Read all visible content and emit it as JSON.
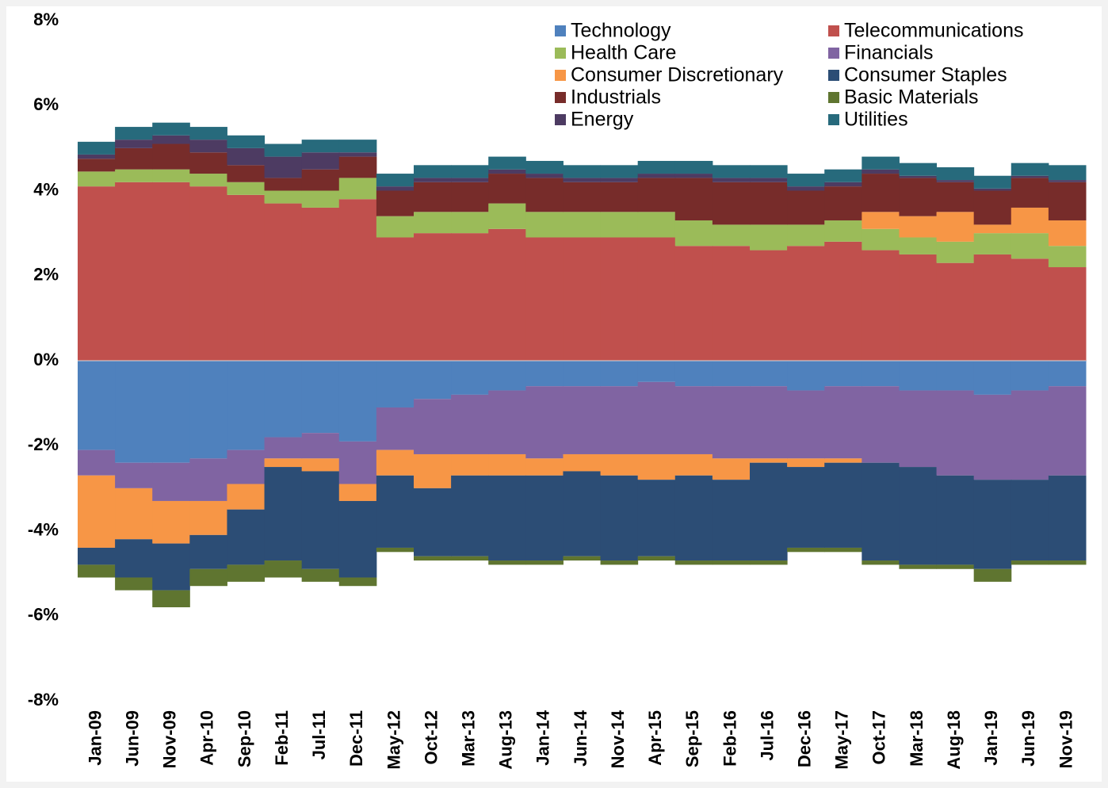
{
  "chart_data": {
    "type": "stacked-area",
    "categories": [
      "Jan-09",
      "Jun-09",
      "Nov-09",
      "Apr-10",
      "Sep-10",
      "Feb-11",
      "Jul-11",
      "Dec-11",
      "May-12",
      "Oct-12",
      "Mar-13",
      "Aug-13",
      "Jan-14",
      "Jun-14",
      "Nov-14",
      "Apr-15",
      "Sep-15",
      "Feb-16",
      "Jul-16",
      "Dec-16",
      "May-17",
      "Oct-17",
      "Mar-18",
      "Aug-18",
      "Jan-19",
      "Jun-19",
      "Nov-19"
    ],
    "series": [
      {
        "name": "Technology",
        "color": "#4f81bd",
        "values": [
          -2.1,
          -2.4,
          -2.4,
          -2.3,
          -2.1,
          -1.8,
          -1.7,
          -1.9,
          -1.1,
          -0.9,
          -0.8,
          -0.7,
          -0.6,
          -0.6,
          -0.6,
          -0.5,
          -0.6,
          -0.6,
          -0.6,
          -0.7,
          -0.6,
          -0.6,
          -0.7,
          -0.7,
          -0.8,
          -0.7,
          -0.6
        ]
      },
      {
        "name": "Telecommunications",
        "color": "#c0504d",
        "values": [
          4.1,
          4.2,
          4.2,
          4.1,
          3.9,
          3.7,
          3.6,
          3.8,
          2.9,
          3.0,
          3.0,
          3.1,
          2.9,
          2.9,
          2.9,
          2.9,
          2.7,
          2.7,
          2.6,
          2.7,
          2.8,
          2.6,
          2.5,
          2.3,
          2.5,
          2.4,
          2.2
        ]
      },
      {
        "name": "Health Care",
        "color": "#9bbb59",
        "values": [
          0.35,
          0.3,
          0.3,
          0.3,
          0.3,
          0.3,
          0.4,
          0.5,
          0.5,
          0.5,
          0.5,
          0.6,
          0.6,
          0.6,
          0.6,
          0.6,
          0.6,
          0.5,
          0.6,
          0.5,
          0.5,
          0.5,
          0.4,
          0.5,
          0.5,
          0.6,
          0.5
        ]
      },
      {
        "name": "Financials",
        "color": "#8064a2",
        "values": [
          -0.6,
          -0.6,
          -0.9,
          -1.0,
          -0.8,
          -0.5,
          -0.6,
          -1.0,
          -1.0,
          -1.3,
          -1.4,
          -1.5,
          -1.7,
          -1.6,
          -1.6,
          -1.7,
          -1.6,
          -1.7,
          -1.7,
          -1.6,
          -1.7,
          -1.8,
          -1.8,
          -2.0,
          -2.0,
          -2.1,
          -2.1
        ]
      },
      {
        "name": "Consumer Discretionary",
        "color": "#f79646",
        "values": [
          -1.7,
          -1.2,
          -1.0,
          -0.8,
          -0.6,
          -0.2,
          -0.3,
          -0.4,
          -0.6,
          -0.8,
          -0.5,
          -0.5,
          -0.4,
          -0.4,
          -0.5,
          -0.6,
          -0.5,
          -0.5,
          -0.1,
          -0.2,
          -0.1,
          0.4,
          0.5,
          0.7,
          0.2,
          0.6,
          0.6
        ]
      },
      {
        "name": "Consumer Staples",
        "color": "#2c4d75",
        "values": [
          -0.4,
          -0.9,
          -1.1,
          -0.8,
          -1.3,
          -2.2,
          -2.3,
          -1.8,
          -1.7,
          -1.6,
          -1.9,
          -2.0,
          -2.0,
          -2.0,
          -2.0,
          -1.8,
          -2.0,
          -1.9,
          -2.3,
          -1.9,
          -2.0,
          -2.3,
          -2.3,
          -2.1,
          -2.1,
          -1.9,
          -2.0
        ]
      },
      {
        "name": "Industrials",
        "color": "#772c2a",
        "values": [
          0.3,
          0.5,
          0.6,
          0.5,
          0.4,
          0.3,
          0.5,
          0.5,
          0.6,
          0.7,
          0.7,
          0.7,
          0.8,
          0.7,
          0.7,
          0.8,
          1.0,
          1.0,
          1.0,
          0.8,
          0.8,
          0.9,
          0.9,
          0.7,
          0.8,
          0.7,
          0.9
        ]
      },
      {
        "name": "Basic Materials",
        "color": "#5f7530",
        "values": [
          -0.3,
          -0.3,
          -0.4,
          -0.4,
          -0.4,
          -0.4,
          -0.3,
          -0.2,
          -0.1,
          -0.1,
          -0.1,
          -0.1,
          -0.1,
          -0.1,
          -0.1,
          -0.1,
          -0.1,
          -0.1,
          -0.1,
          -0.1,
          -0.1,
          -0.1,
          -0.1,
          -0.1,
          -0.3,
          -0.1,
          -0.1
        ]
      },
      {
        "name": "Energy",
        "color": "#4d3b62",
        "values": [
          0.1,
          0.2,
          0.2,
          0.3,
          0.4,
          0.5,
          0.4,
          0.1,
          0.1,
          0.1,
          0.1,
          0.1,
          0.1,
          0.1,
          0.1,
          0.1,
          0.1,
          0.1,
          0.1,
          0.1,
          0.1,
          0.1,
          0.05,
          0.05,
          0.05,
          0.05,
          0.05
        ]
      },
      {
        "name": "Utilities",
        "color": "#276a7c",
        "values": [
          0.3,
          0.3,
          0.3,
          0.3,
          0.3,
          0.3,
          0.3,
          0.3,
          0.3,
          0.3,
          0.3,
          0.3,
          0.3,
          0.3,
          0.3,
          0.3,
          0.3,
          0.3,
          0.3,
          0.3,
          0.3,
          0.3,
          0.3,
          0.3,
          0.3,
          0.3,
          0.35
        ]
      }
    ],
    "ylim": [
      -8,
      8
    ],
    "yticks": [
      {
        "value": -8,
        "label": "-8%"
      },
      {
        "value": -6,
        "label": "-6%"
      },
      {
        "value": -4,
        "label": "-4%"
      },
      {
        "value": -2,
        "label": "-2%"
      },
      {
        "value": 0,
        "label": "0%"
      },
      {
        "value": 2,
        "label": "2%"
      },
      {
        "value": 4,
        "label": "4%"
      },
      {
        "value": 6,
        "label": "6%"
      },
      {
        "value": 8,
        "label": "8%"
      }
    ],
    "grid": false,
    "legend": "top-right"
  }
}
